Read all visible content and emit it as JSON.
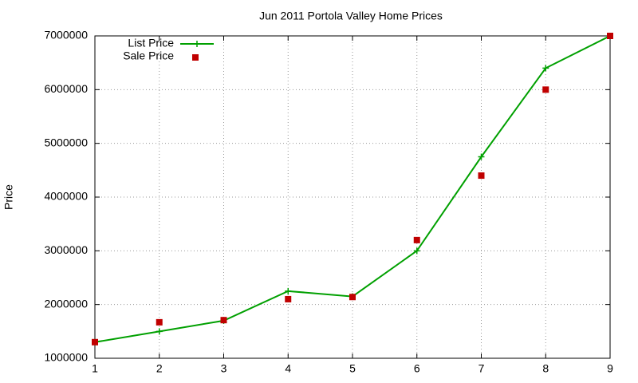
{
  "chart_data": {
    "type": "line",
    "title": "Jun 2011 Portola Valley Home Prices",
    "y_label": "Price",
    "x": [
      1,
      2,
      3,
      4,
      5,
      6,
      7,
      8,
      9
    ],
    "series": [
      {
        "name": "List Price",
        "color": "#00a000",
        "mode": "lines+markers",
        "values": [
          1300000,
          1500000,
          1700000,
          2250000,
          2150000,
          3000000,
          4750000,
          6400000,
          7000000
        ]
      },
      {
        "name": "Sale Price",
        "color": "#c00000",
        "mode": "markers",
        "values": [
          1300000,
          1670000,
          1710000,
          2100000,
          2140000,
          3200000,
          4400000,
          6000000,
          7000000
        ]
      }
    ],
    "xlim": [
      1,
      9
    ],
    "ylim": [
      1000000,
      7000000
    ],
    "xticks": [
      1,
      2,
      3,
      4,
      5,
      6,
      7,
      8,
      9
    ],
    "yticks": [
      1000000,
      2000000,
      3000000,
      4000000,
      5000000,
      6000000,
      7000000
    ],
    "grid": true,
    "legend": "top-left"
  }
}
